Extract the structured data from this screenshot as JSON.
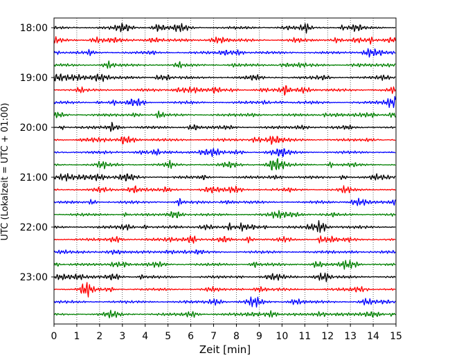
{
  "chart_data": {
    "type": "line",
    "title": "",
    "xlabel": "Zeit  [min]",
    "ylabel": "UTC (Lokalzeit = UTC + 01:00)",
    "xlim": [
      0,
      15
    ],
    "x_ticks": [
      "0",
      "1",
      "2",
      "3",
      "4",
      "5",
      "6",
      "7",
      "8",
      "9",
      "10",
      "11",
      "12",
      "13",
      "14",
      "15"
    ],
    "y_tick_labels": [
      "18:00",
      "19:00",
      "20:00",
      "21:00",
      "22:00",
      "23:00"
    ],
    "grid": "vertical-dotted",
    "trace_colors": [
      "#000000",
      "#ff0000",
      "#0000ff",
      "#008000"
    ],
    "traces": [
      {
        "start": "18:00",
        "color": "#000000"
      },
      {
        "start": "18:15",
        "color": "#ff0000"
      },
      {
        "start": "18:30",
        "color": "#0000ff"
      },
      {
        "start": "18:45",
        "color": "#008000"
      },
      {
        "start": "19:00",
        "color": "#000000"
      },
      {
        "start": "19:15",
        "color": "#ff0000"
      },
      {
        "start": "19:30",
        "color": "#0000ff"
      },
      {
        "start": "19:45",
        "color": "#008000"
      },
      {
        "start": "20:00",
        "color": "#000000"
      },
      {
        "start": "20:15",
        "color": "#ff0000"
      },
      {
        "start": "20:30",
        "color": "#0000ff"
      },
      {
        "start": "20:45",
        "color": "#008000"
      },
      {
        "start": "21:00",
        "color": "#000000"
      },
      {
        "start": "21:15",
        "color": "#ff0000"
      },
      {
        "start": "21:30",
        "color": "#0000ff"
      },
      {
        "start": "21:45",
        "color": "#008000"
      },
      {
        "start": "22:00",
        "color": "#000000"
      },
      {
        "start": "22:15",
        "color": "#ff0000"
      },
      {
        "start": "22:30",
        "color": "#0000ff"
      },
      {
        "start": "22:45",
        "color": "#008000"
      },
      {
        "start": "23:00",
        "color": "#000000"
      },
      {
        "start": "23:15",
        "color": "#ff0000"
      },
      {
        "start": "23:30",
        "color": "#0000ff"
      },
      {
        "start": "23:45",
        "color": "#008000"
      }
    ]
  }
}
